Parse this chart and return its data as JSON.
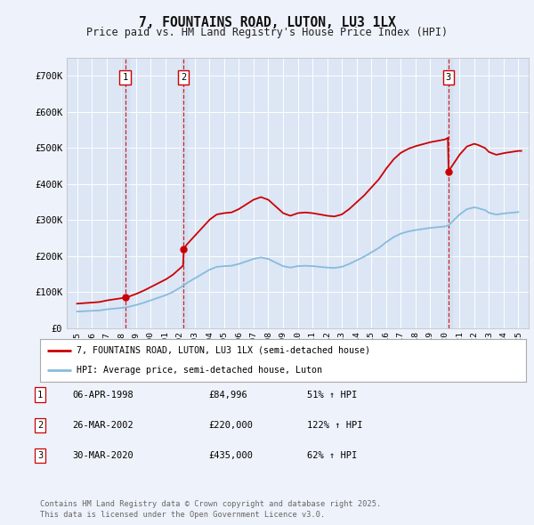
{
  "title": "7, FOUNTAINS ROAD, LUTON, LU3 1LX",
  "subtitle": "Price paid vs. HM Land Registry's House Price Index (HPI)",
  "background_color": "#eef2fa",
  "plot_bg_color": "#dce6f5",
  "ylim": [
    0,
    750000
  ],
  "yticks": [
    0,
    100000,
    200000,
    300000,
    400000,
    500000,
    600000,
    700000
  ],
  "ytick_labels": [
    "£0",
    "£100K",
    "£200K",
    "£300K",
    "£400K",
    "£500K",
    "£600K",
    "£700K"
  ],
  "sale_info": [
    {
      "num": "1",
      "date": "06-APR-1998",
      "price": "£84,996",
      "hpi": "51% ↑ HPI"
    },
    {
      "num": "2",
      "date": "26-MAR-2002",
      "price": "£220,000",
      "hpi": "122% ↑ HPI"
    },
    {
      "num": "3",
      "date": "30-MAR-2020",
      "price": "£435,000",
      "hpi": "62% ↑ HPI"
    }
  ],
  "legend_line1": "7, FOUNTAINS ROAD, LUTON, LU3 1LX (semi-detached house)",
  "legend_line2": "HPI: Average price, semi-detached house, Luton",
  "footer": "Contains HM Land Registry data © Crown copyright and database right 2025.\nThis data is licensed under the Open Government Licence v3.0.",
  "red_color": "#cc0000",
  "blue_color": "#88bbdd",
  "vline_color": "#cc0000",
  "shade_color": "#c8d8f0"
}
